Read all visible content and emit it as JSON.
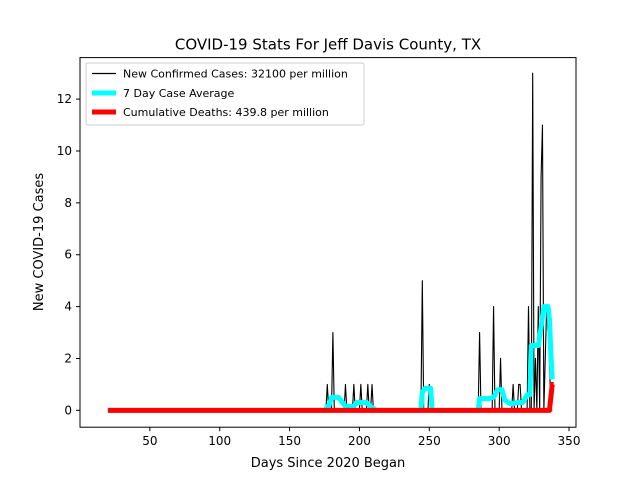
{
  "chart_data": {
    "type": "line",
    "title": "COVID-19 Stats For Jeff Davis County, TX",
    "xlabel": "Days Since 2020 Began",
    "ylabel": "New COVID-19 Cases",
    "xlim": [
      0,
      355
    ],
    "ylim": [
      -0.65,
      13.6
    ],
    "xticks": [
      50,
      100,
      150,
      200,
      250,
      300,
      350
    ],
    "yticks": [
      0,
      2,
      4,
      6,
      8,
      10,
      12
    ],
    "grid": false,
    "legend_position": "top-left",
    "series": [
      {
        "name": "New Confirmed Cases: 32100 per million",
        "color": "#000000",
        "points": [
          [
            20,
            0
          ],
          [
            176,
            0
          ],
          [
            177,
            1
          ],
          [
            178,
            0
          ],
          [
            180,
            0
          ],
          [
            181,
            3
          ],
          [
            182,
            0
          ],
          [
            189,
            0
          ],
          [
            190,
            1
          ],
          [
            191,
            0
          ],
          [
            195,
            0
          ],
          [
            196,
            1
          ],
          [
            197,
            0
          ],
          [
            200,
            0
          ],
          [
            201,
            1
          ],
          [
            202,
            0
          ],
          [
            205,
            0
          ],
          [
            206,
            1
          ],
          [
            207,
            0
          ],
          [
            208,
            0
          ],
          [
            209,
            1
          ],
          [
            210,
            0
          ],
          [
            244,
            0
          ],
          [
            245,
            5
          ],
          [
            246,
            0
          ],
          [
            249,
            0
          ],
          [
            250,
            1
          ],
          [
            251,
            0
          ],
          [
            285,
            0
          ],
          [
            286,
            3
          ],
          [
            287,
            0
          ],
          [
            295,
            0
          ],
          [
            296,
            4
          ],
          [
            297,
            0
          ],
          [
            300,
            0
          ],
          [
            301,
            2
          ],
          [
            302,
            0
          ],
          [
            309,
            0
          ],
          [
            310,
            1
          ],
          [
            311,
            0
          ],
          [
            313,
            0
          ],
          [
            314,
            1
          ],
          [
            315,
            1
          ],
          [
            316,
            0
          ],
          [
            320,
            0
          ],
          [
            321,
            4
          ],
          [
            322,
            0
          ],
          [
            323,
            0
          ],
          [
            324,
            13
          ],
          [
            325,
            0
          ],
          [
            326,
            2
          ],
          [
            327,
            0
          ],
          [
            328,
            4
          ],
          [
            329,
            0
          ],
          [
            330,
            9
          ],
          [
            331,
            11
          ],
          [
            332,
            0
          ],
          [
            333,
            2
          ],
          [
            334,
            4
          ],
          [
            335,
            3
          ],
          [
            336,
            2
          ],
          [
            337,
            0
          ],
          [
            338,
            0
          ]
        ]
      },
      {
        "name": "7 Day Case Average",
        "color": "#00ffff",
        "points": [
          [
            20,
            0
          ],
          [
            176,
            0
          ],
          [
            177,
            0.15
          ],
          [
            178,
            0.15
          ],
          [
            180,
            0.5
          ],
          [
            185,
            0.5
          ],
          [
            188,
            0.3
          ],
          [
            190,
            0.15
          ],
          [
            196,
            0.15
          ],
          [
            198,
            0.3
          ],
          [
            205,
            0.3
          ],
          [
            208,
            0.15
          ],
          [
            212,
            0
          ],
          [
            244,
            0
          ],
          [
            245,
            0.7
          ],
          [
            247,
            0.85
          ],
          [
            251,
            0.85
          ],
          [
            252,
            0
          ],
          [
            285,
            0
          ],
          [
            286,
            0.45
          ],
          [
            292,
            0.45
          ],
          [
            296,
            0.5
          ],
          [
            299,
            0.8
          ],
          [
            302,
            0.8
          ],
          [
            304,
            0.4
          ],
          [
            308,
            0.25
          ],
          [
            313,
            0.3
          ],
          [
            317,
            0.3
          ],
          [
            320,
            0.6
          ],
          [
            322,
            0.6
          ],
          [
            323,
            2.5
          ],
          [
            328,
            2.5
          ],
          [
            330,
            3.2
          ],
          [
            332,
            4
          ],
          [
            335,
            4
          ],
          [
            336,
            3.5
          ],
          [
            337,
            2.2
          ],
          [
            338,
            1.2
          ]
        ]
      },
      {
        "name": "Cumulative Deaths: 439.8 per million",
        "color": "#ff0000",
        "points": [
          [
            20,
            0
          ],
          [
            336,
            0
          ],
          [
            337,
            0.5
          ],
          [
            338,
            1.0
          ],
          [
            339,
            1.0
          ]
        ]
      }
    ]
  }
}
